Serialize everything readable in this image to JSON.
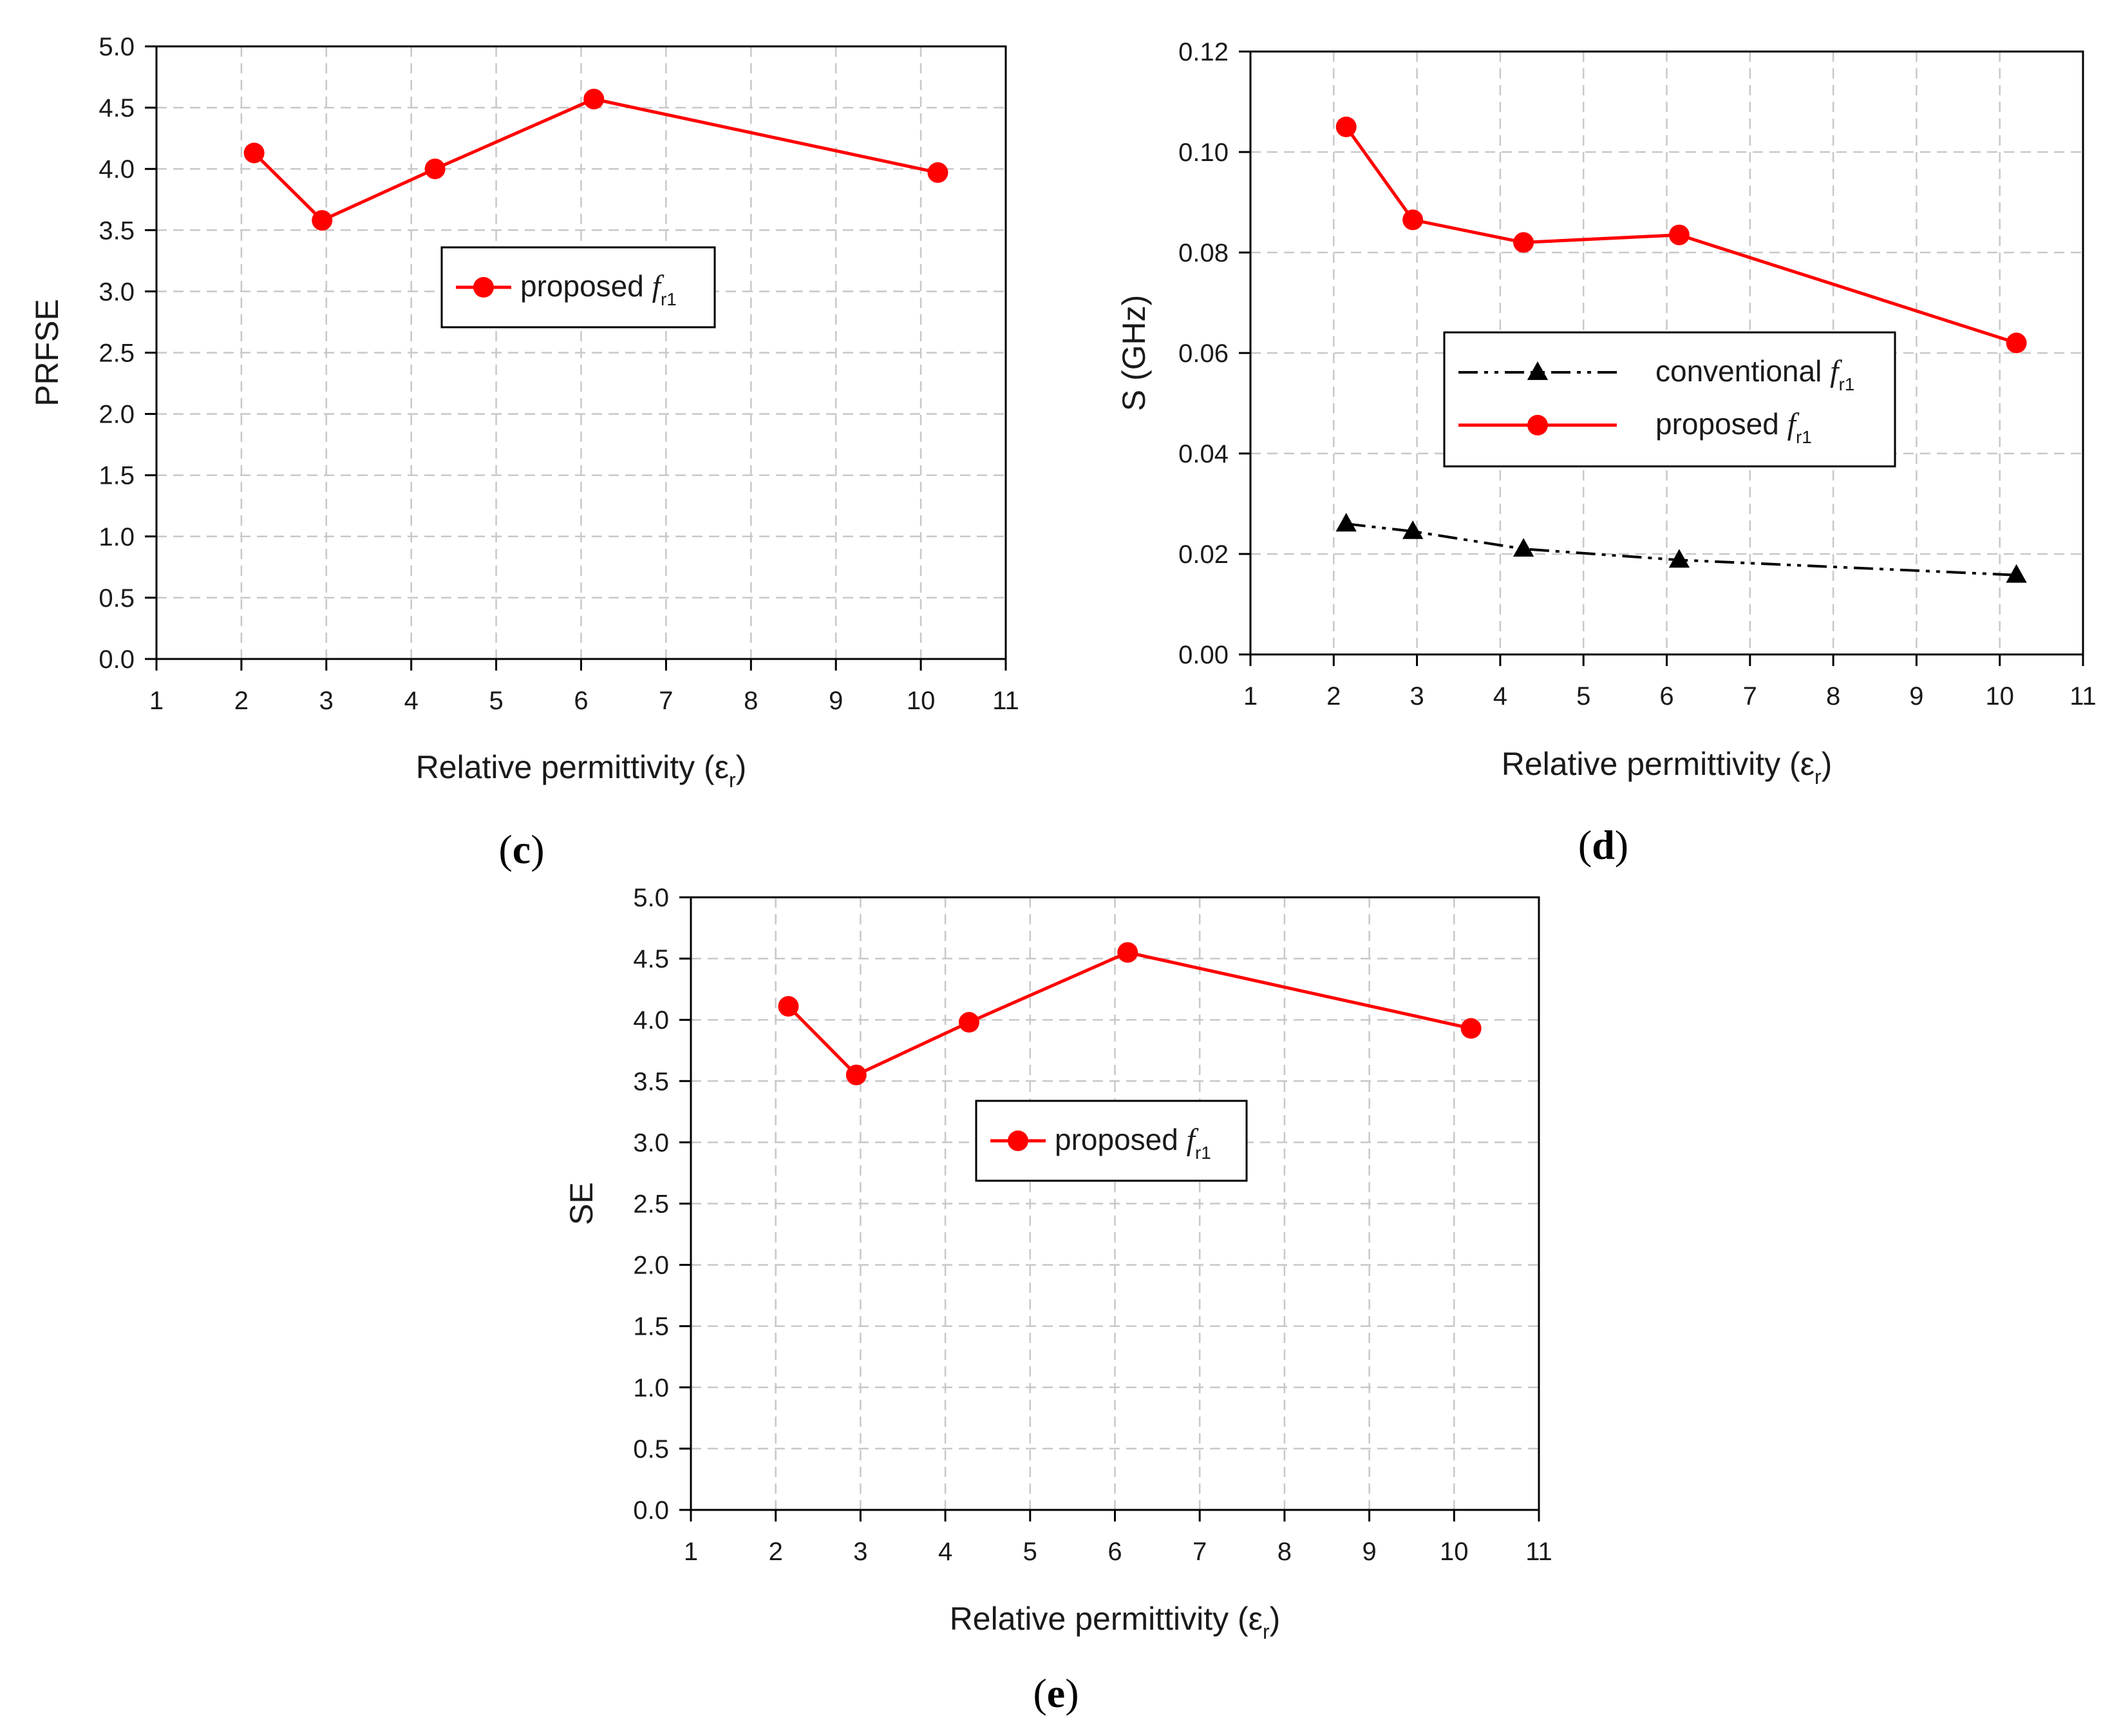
{
  "chart_data": [
    {
      "id": "c",
      "type": "line",
      "panel_label": "c",
      "xlabel": "Relative permittivity (ε",
      "xlabel_sub": "r",
      "xlabel_end": ")",
      "ylabel": "PRFSE",
      "xlim": [
        1,
        11
      ],
      "ylim": [
        0,
        5
      ],
      "xticks": [
        "1",
        "2",
        "3",
        "4",
        "5",
        "6",
        "7",
        "8",
        "9",
        "10",
        "11"
      ],
      "yticks": [
        "0.0",
        "0.5",
        "1.0",
        "1.5",
        "2.0",
        "2.5",
        "3.0",
        "3.5",
        "4.0",
        "4.5",
        "5.0"
      ],
      "grid": true,
      "legend_position": "center",
      "series": [
        {
          "name": "proposed",
          "legend_f": "f",
          "legend_sub": "r1",
          "color": "#ff0000",
          "marker": "circle",
          "line": "solid",
          "x": [
            2.15,
            2.95,
            4.28,
            6.15,
            10.2
          ],
          "y": [
            4.13,
            3.58,
            4.0,
            4.57,
            3.97
          ]
        }
      ]
    },
    {
      "id": "d",
      "type": "line",
      "panel_label": "d",
      "xlabel": "Relative permittivity (ε",
      "xlabel_sub": "r",
      "xlabel_end": ")",
      "ylabel": "S (GHz)",
      "xlim": [
        1,
        11
      ],
      "ylim": [
        0,
        0.12
      ],
      "xticks": [
        "1",
        "2",
        "3",
        "4",
        "5",
        "6",
        "7",
        "8",
        "9",
        "10",
        "11"
      ],
      "yticks": [
        "0.00",
        "0.02",
        "0.04",
        "0.06",
        "0.08",
        "0.10",
        "0.12"
      ],
      "grid": true,
      "legend_position": "center-right",
      "series": [
        {
          "name": "conventional",
          "legend_f": "f",
          "legend_sub": "r1",
          "color": "#000000",
          "marker": "triangle",
          "line": "dash-dot-dot",
          "x": [
            2.15,
            2.95,
            4.28,
            6.15,
            10.2
          ],
          "y": [
            0.026,
            0.0245,
            0.021,
            0.0188,
            0.0158
          ]
        },
        {
          "name": "proposed",
          "legend_f": "f",
          "legend_sub": "r1",
          "color": "#ff0000",
          "marker": "circle",
          "line": "solid",
          "x": [
            2.15,
            2.95,
            4.28,
            6.15,
            10.2
          ],
          "y": [
            0.105,
            0.0865,
            0.082,
            0.0835,
            0.062
          ]
        }
      ]
    },
    {
      "id": "e",
      "type": "line",
      "panel_label": "e",
      "xlabel": "Relative permittivity (ε",
      "xlabel_sub": "r",
      "xlabel_end": ")",
      "ylabel": "SE",
      "xlim": [
        1,
        11
      ],
      "ylim": [
        0,
        5
      ],
      "xticks": [
        "1",
        "2",
        "3",
        "4",
        "5",
        "6",
        "7",
        "8",
        "9",
        "10",
        "11"
      ],
      "yticks": [
        "0.0",
        "0.5",
        "1.0",
        "1.5",
        "2.0",
        "2.5",
        "3.0",
        "3.5",
        "4.0",
        "4.5",
        "5.0"
      ],
      "grid": true,
      "legend_position": "center",
      "series": [
        {
          "name": "proposed",
          "legend_f": "f",
          "legend_sub": "r1",
          "color": "#ff0000",
          "marker": "circle",
          "line": "solid",
          "x": [
            2.15,
            2.95,
            4.28,
            6.15,
            10.2
          ],
          "y": [
            4.11,
            3.55,
            3.98,
            4.55,
            3.93
          ]
        }
      ]
    }
  ]
}
